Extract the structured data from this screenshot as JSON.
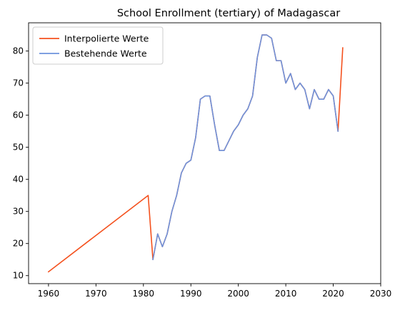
{
  "chart_data": {
    "type": "line",
    "title": "School Enrollment (tertiary) of Madagascar",
    "xlabel": "",
    "ylabel": "",
    "xlim": [
      1955.8,
      2030
    ],
    "ylim": [
      7.5,
      88.8
    ],
    "xticks": [
      1960,
      1970,
      1980,
      1990,
      2000,
      2010,
      2020,
      2030
    ],
    "yticks": [
      10,
      20,
      30,
      40,
      50,
      60,
      70,
      80
    ],
    "grid": false,
    "legend_position": "top-left",
    "series": [
      {
        "name": "Interpolierte Werte",
        "color": "#f4511e",
        "x": [
          1960,
          1981,
          1982,
          1983,
          1984,
          1985,
          1986,
          1987,
          1988,
          1989,
          1990,
          1991,
          1992,
          1993,
          1994,
          1995,
          1996,
          1997,
          1998,
          1999,
          2000,
          2001,
          2002,
          2003,
          2004,
          2005,
          2006,
          2007,
          2008,
          2009,
          2010,
          2011,
          2012,
          2013,
          2014,
          2015,
          2016,
          2017,
          2018,
          2019,
          2020,
          2021,
          2022
        ],
        "y": [
          11.2,
          35,
          15,
          23,
          19,
          23,
          30,
          35,
          42,
          45,
          46,
          53,
          65,
          66,
          66,
          57,
          49,
          49,
          52,
          55,
          57,
          60,
          62,
          66,
          78,
          85,
          85,
          84,
          77,
          77,
          70,
          73,
          68,
          70,
          68,
          62,
          68,
          65,
          65,
          68,
          66,
          55,
          81
        ]
      },
      {
        "name": "Bestehende Werte",
        "color": "#6d93dd",
        "x": [
          1982,
          1983,
          1984,
          1985,
          1986,
          1987,
          1988,
          1989,
          1990,
          1991,
          1992,
          1993,
          1994,
          1995,
          1996,
          1997,
          1998,
          1999,
          2000,
          2001,
          2002,
          2003,
          2004,
          2005,
          2006,
          2007,
          2008,
          2009,
          2010,
          2011,
          2012,
          2013,
          2014,
          2015,
          2016,
          2017,
          2018,
          2019,
          2020,
          2021
        ],
        "y": [
          15,
          23,
          19,
          23,
          30,
          35,
          42,
          45,
          46,
          53,
          65,
          66,
          66,
          57,
          49,
          49,
          52,
          55,
          57,
          60,
          62,
          66,
          78,
          85,
          85,
          84,
          77,
          77,
          70,
          73,
          68,
          70,
          68,
          62,
          68,
          65,
          65,
          68,
          66,
          55
        ]
      }
    ]
  }
}
